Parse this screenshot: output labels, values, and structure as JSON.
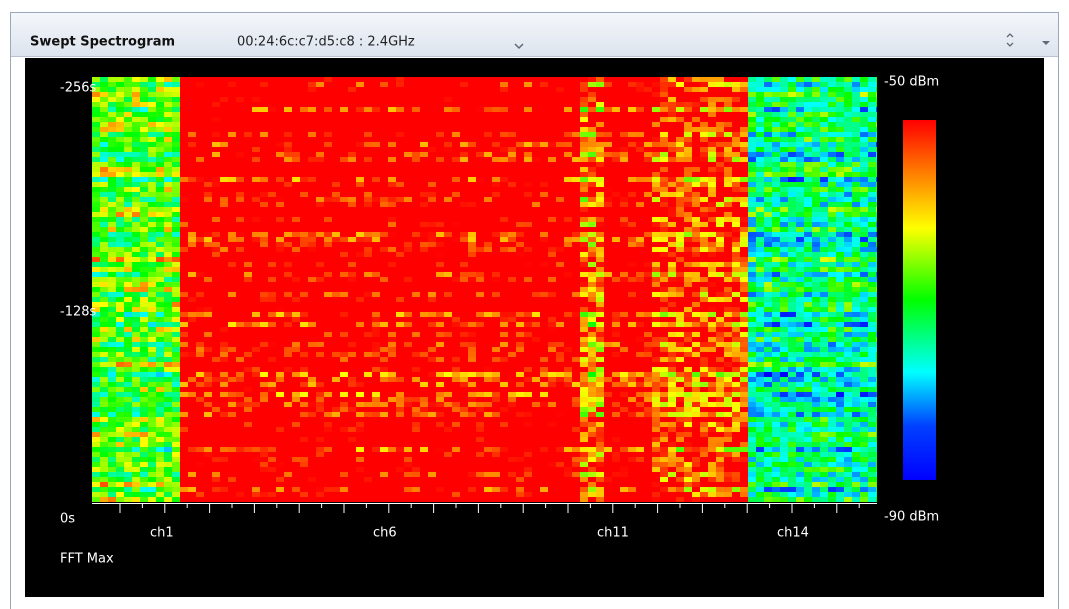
{
  "panel": {
    "title": "Swept Spectrogram",
    "source": "00:24:6c:c7:d5:c8 : 2.4GHz"
  },
  "spectrogram": {
    "y_labels": [
      "-256s",
      "-128s",
      "0s"
    ],
    "x_labels": [
      "ch1",
      "ch6",
      "ch11",
      "ch14"
    ],
    "scale_max": "-50 dBm",
    "scale_min": "-90 dBm",
    "mode": "FFT Max"
  }
}
